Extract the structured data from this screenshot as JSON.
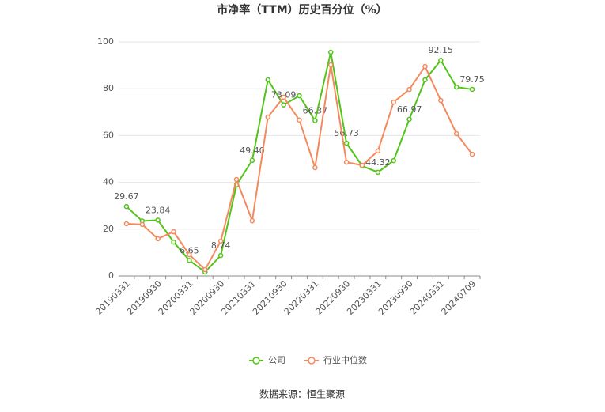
{
  "chart_data": {
    "type": "line",
    "title": "市净率（TTM）历史百分位（%）",
    "source": "数据来源：恒生聚源",
    "categories": [
      "20190331",
      null,
      "20190930",
      null,
      "20200331",
      null,
      "20200930",
      null,
      "20210331",
      null,
      "20210930",
      null,
      "20220331",
      null,
      "20220930",
      null,
      "20230331",
      null,
      "20230930",
      null,
      "20240331",
      null,
      "20240709"
    ],
    "series": [
      {
        "name": "公司",
        "color": "#52c41a",
        "values": [
          29.67,
          23.5,
          23.84,
          14.5,
          6.65,
          1.7,
          8.74,
          38.9,
          49.4,
          83.8,
          73.09,
          77.0,
          66.37,
          95.6,
          56.73,
          47.0,
          44.32,
          49.3,
          66.97,
          83.8,
          92.15,
          80.7,
          79.75
        ],
        "value_labels": [
          "29.67",
          null,
          "23.84",
          null,
          "6.65",
          null,
          "8.74",
          null,
          "49.40",
          null,
          "73.09",
          null,
          "66.37",
          null,
          "56.73",
          null,
          "44.32",
          null,
          "66.97",
          null,
          "92.15",
          null,
          "79.75"
        ]
      },
      {
        "name": "行业中位数",
        "color": "#f5895e",
        "values": [
          22.3,
          22.0,
          15.9,
          18.9,
          9.1,
          2.7,
          14.9,
          41.2,
          23.6,
          67.9,
          76.4,
          66.6,
          46.3,
          90.2,
          48.6,
          47.3,
          53.4,
          74.3,
          79.7,
          89.5,
          75.0,
          60.8,
          52.0
        ]
      }
    ],
    "ylim": [
      0,
      100
    ],
    "yticks": [
      0,
      20,
      40,
      60,
      80,
      100
    ],
    "grid": true
  }
}
